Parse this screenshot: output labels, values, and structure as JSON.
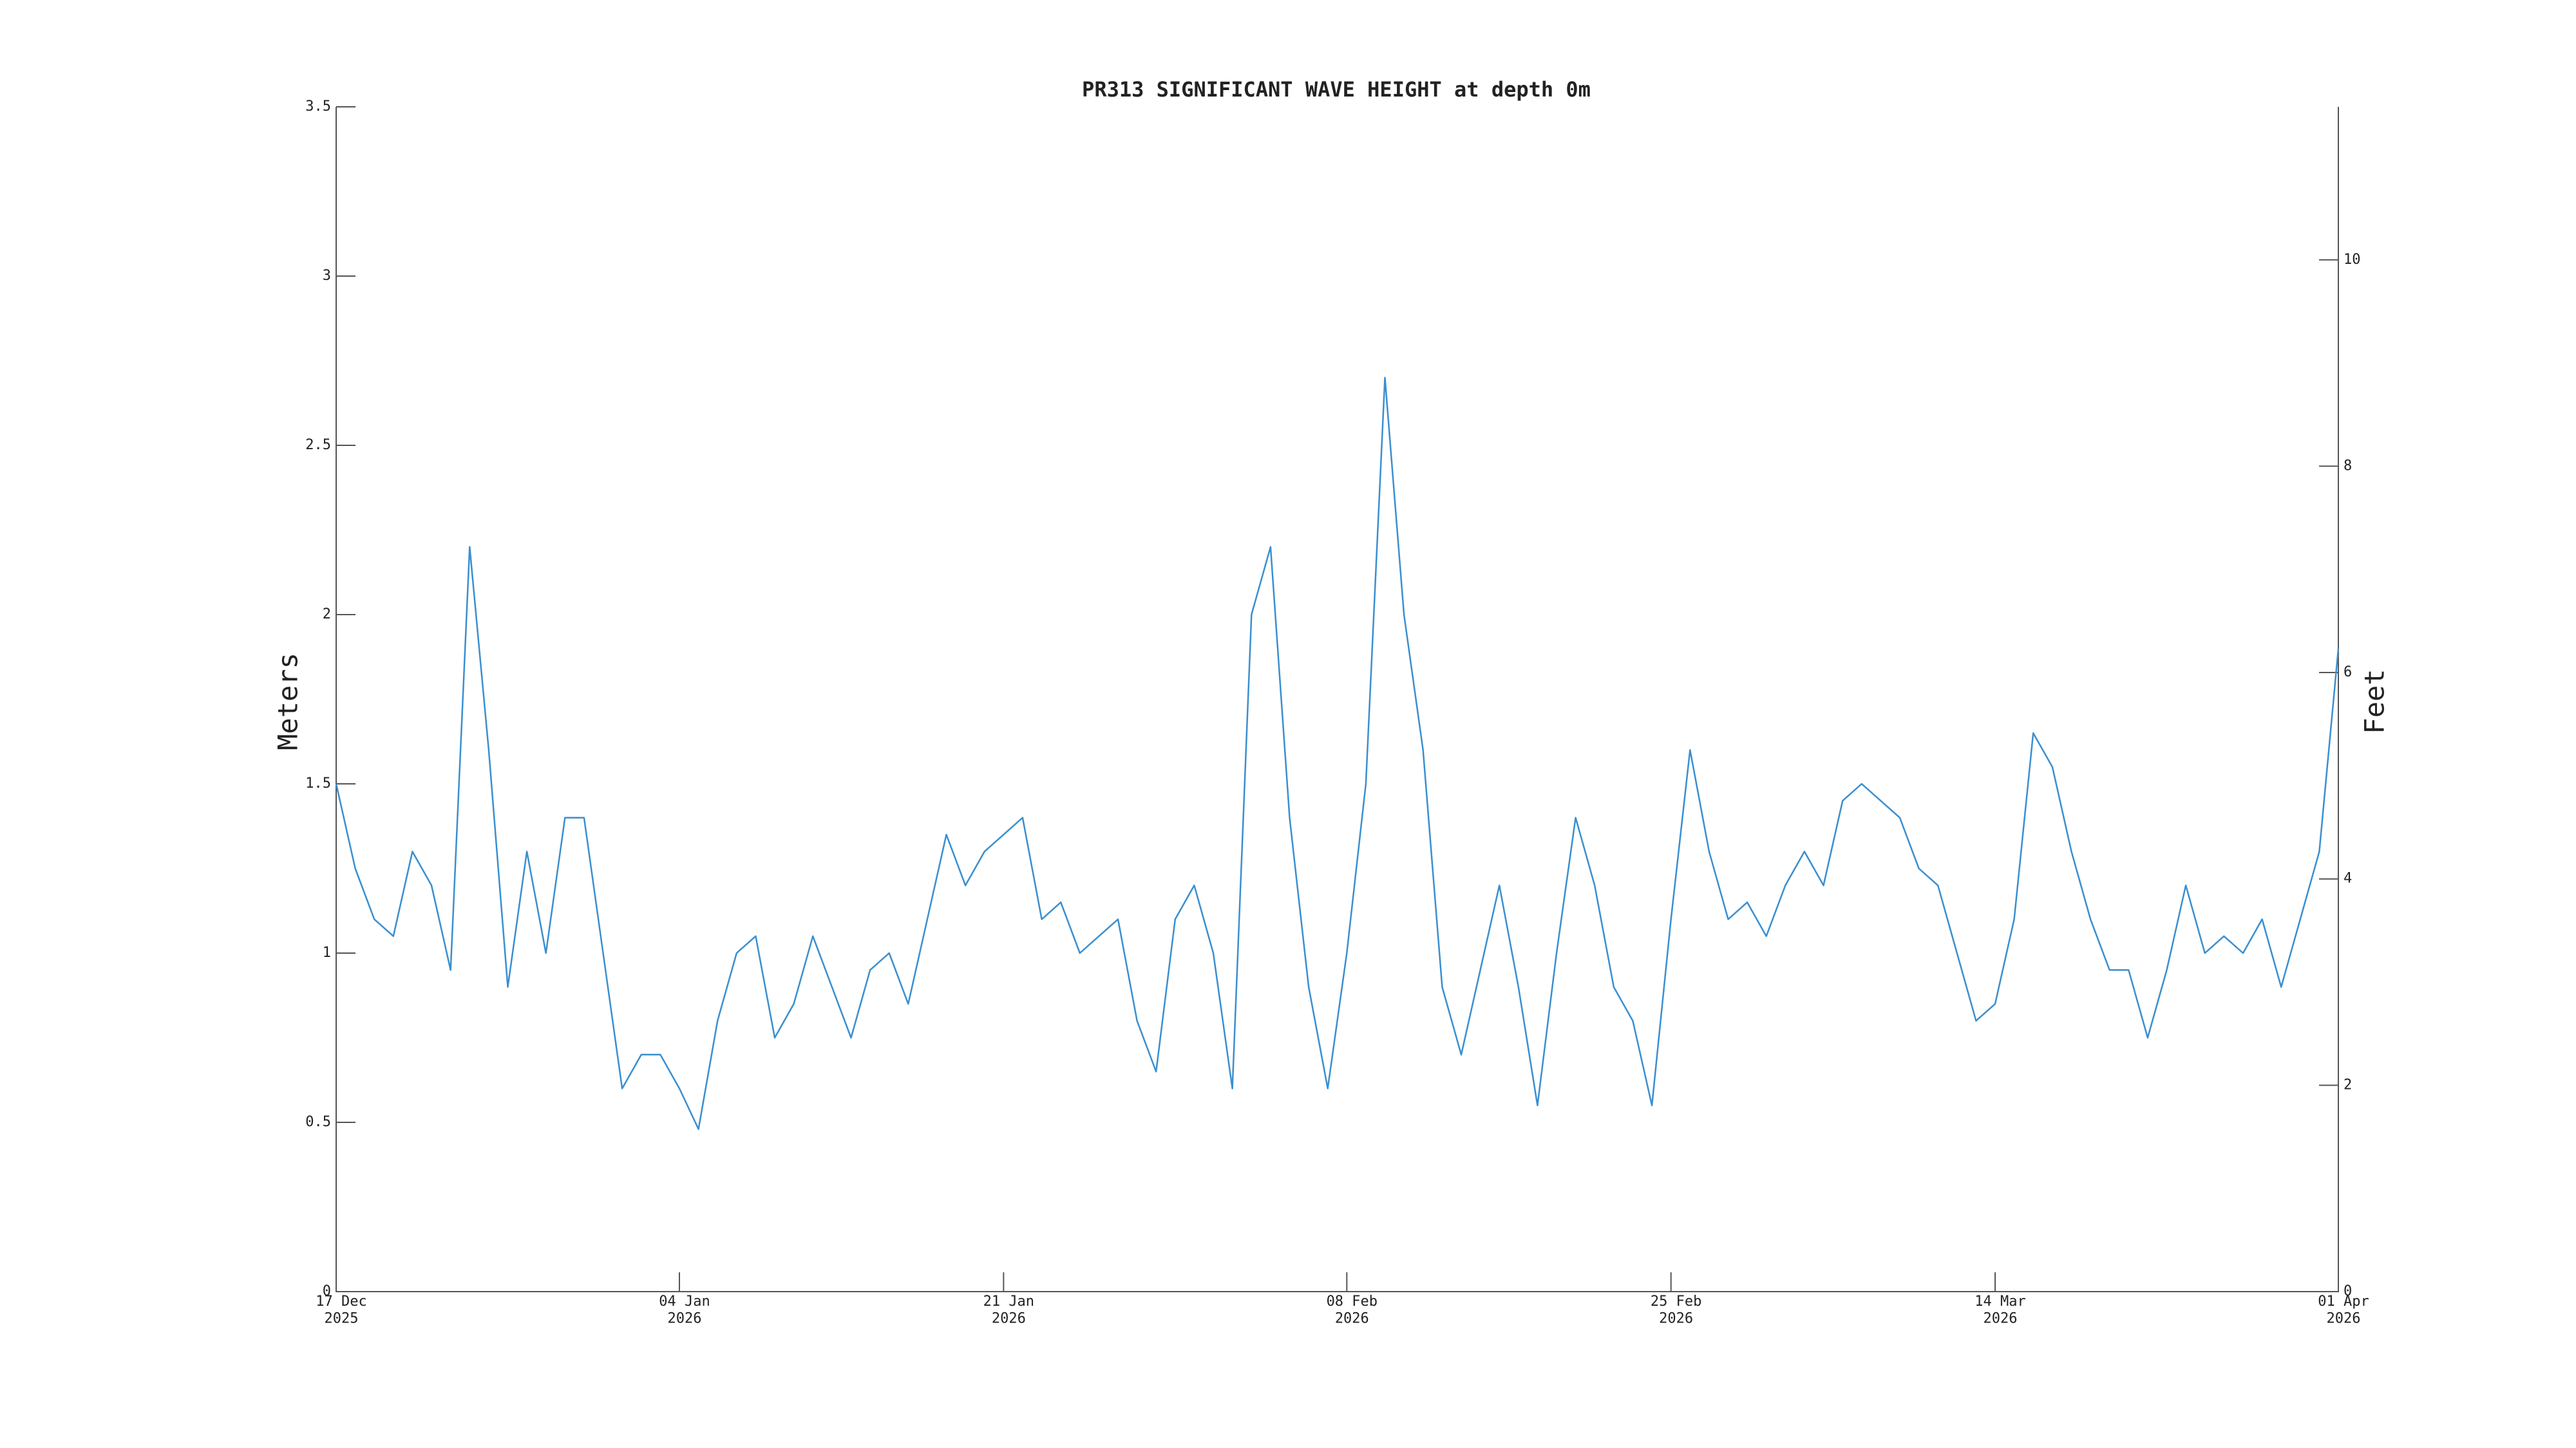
{
  "chart_data": {
    "type": "line",
    "title": "PR313 SIGNIFICANT WAVE HEIGHT at depth 0m",
    "ylabel": "Meters",
    "y2label": "Feet",
    "x": [
      "2025-12-17",
      "2025-12-18",
      "2025-12-19",
      "2025-12-20",
      "2025-12-21",
      "2025-12-22",
      "2025-12-23",
      "2025-12-24",
      "2025-12-25",
      "2025-12-26",
      "2025-12-27",
      "2025-12-28",
      "2025-12-29",
      "2025-12-30",
      "2025-12-31",
      "2026-01-01",
      "2026-01-02",
      "2026-01-03",
      "2026-01-04",
      "2026-01-05",
      "2026-01-06",
      "2026-01-07",
      "2026-01-08",
      "2026-01-09",
      "2026-01-10",
      "2026-01-11",
      "2026-01-12",
      "2026-01-13",
      "2026-01-14",
      "2026-01-15",
      "2026-01-16",
      "2026-01-17",
      "2026-01-18",
      "2026-01-19",
      "2026-01-20",
      "2026-01-21",
      "2026-01-22",
      "2026-01-23",
      "2026-01-24",
      "2026-01-25",
      "2026-01-26",
      "2026-01-27",
      "2026-01-28",
      "2026-01-29",
      "2026-01-30",
      "2026-01-31",
      "2026-02-01",
      "2026-02-02",
      "2026-02-03",
      "2026-02-04",
      "2026-02-05",
      "2026-02-06",
      "2026-02-07",
      "2026-02-08",
      "2026-02-09",
      "2026-02-10",
      "2026-02-11",
      "2026-02-12",
      "2026-02-13",
      "2026-02-14",
      "2026-02-15",
      "2026-02-16",
      "2026-02-17",
      "2026-02-18",
      "2026-02-19",
      "2026-02-20",
      "2026-02-21",
      "2026-02-22",
      "2026-02-23",
      "2026-02-24",
      "2026-02-25",
      "2026-02-26",
      "2026-02-27",
      "2026-02-28",
      "2026-03-01",
      "2026-03-02",
      "2026-03-03",
      "2026-03-04",
      "2026-03-05",
      "2026-03-06",
      "2026-03-07",
      "2026-03-08",
      "2026-03-09",
      "2026-03-10",
      "2026-03-11",
      "2026-03-12",
      "2026-03-13",
      "2026-03-14",
      "2026-03-15",
      "2026-03-16",
      "2026-03-17",
      "2026-03-18",
      "2026-03-19",
      "2026-03-20",
      "2026-03-21",
      "2026-03-22",
      "2026-03-23",
      "2026-03-24",
      "2026-03-25",
      "2026-03-26",
      "2026-03-27",
      "2026-03-28",
      "2026-03-29",
      "2026-03-30",
      "2026-03-31",
      "2026-04-01"
    ],
    "series": [
      {
        "name": "Significant wave height",
        "color": "#3a8fd0",
        "values": [
          1.5,
          1.25,
          1.1,
          1.05,
          1.3,
          1.2,
          0.95,
          2.2,
          1.6,
          0.9,
          1.3,
          1.0,
          1.4,
          1.4,
          1.0,
          0.6,
          0.7,
          0.7,
          0.6,
          0.48,
          0.8,
          1.0,
          1.05,
          0.75,
          0.85,
          1.05,
          0.9,
          0.75,
          0.95,
          1.0,
          0.85,
          1.1,
          1.35,
          1.2,
          1.3,
          1.35,
          1.4,
          1.1,
          1.15,
          1.0,
          1.05,
          1.1,
          0.8,
          0.65,
          1.1,
          1.2,
          1.0,
          0.6,
          2.0,
          2.2,
          1.4,
          0.9,
          0.6,
          1.0,
          1.5,
          2.7,
          2.0,
          1.6,
          0.9,
          0.7,
          0.95,
          1.2,
          0.9,
          0.55,
          1.0,
          1.4,
          1.2,
          0.9,
          0.8,
          0.55,
          1.1,
          1.6,
          1.3,
          1.1,
          1.15,
          1.05,
          1.2,
          1.3,
          1.2,
          1.45,
          1.5,
          1.45,
          1.4,
          1.25,
          1.2,
          1.0,
          0.8,
          0.85,
          1.1,
          1.65,
          1.55,
          1.3,
          1.1,
          0.95,
          0.95,
          0.75,
          0.95,
          1.2,
          1.0,
          1.05,
          1.0,
          1.1,
          0.9,
          1.1,
          1.3,
          1.9
        ]
      }
    ],
    "xlim": [
      "2025-12-17",
      "2026-04-01"
    ],
    "xticks": [
      {
        "value": "2025-12-17",
        "label": "17 Dec\n2025"
      },
      {
        "value": "2026-01-04",
        "label": "04 Jan\n2026"
      },
      {
        "value": "2026-01-21",
        "label": "21 Jan\n2026"
      },
      {
        "value": "2026-02-08",
        "label": "08 Feb\n2026"
      },
      {
        "value": "2026-02-25",
        "label": "25 Feb\n2026"
      },
      {
        "value": "2026-03-14",
        "label": "14 Mar\n2026"
      },
      {
        "value": "2026-04-01",
        "label": "01 Apr\n2026"
      }
    ],
    "ylim": [
      0,
      3.5
    ],
    "yticks": [
      0,
      0.5,
      1,
      1.5,
      2,
      2.5,
      3,
      3.5
    ],
    "y2lim": [
      0,
      11.483
    ],
    "y2ticks": [
      0,
      2,
      4,
      6,
      8,
      10
    ],
    "grid": false
  }
}
